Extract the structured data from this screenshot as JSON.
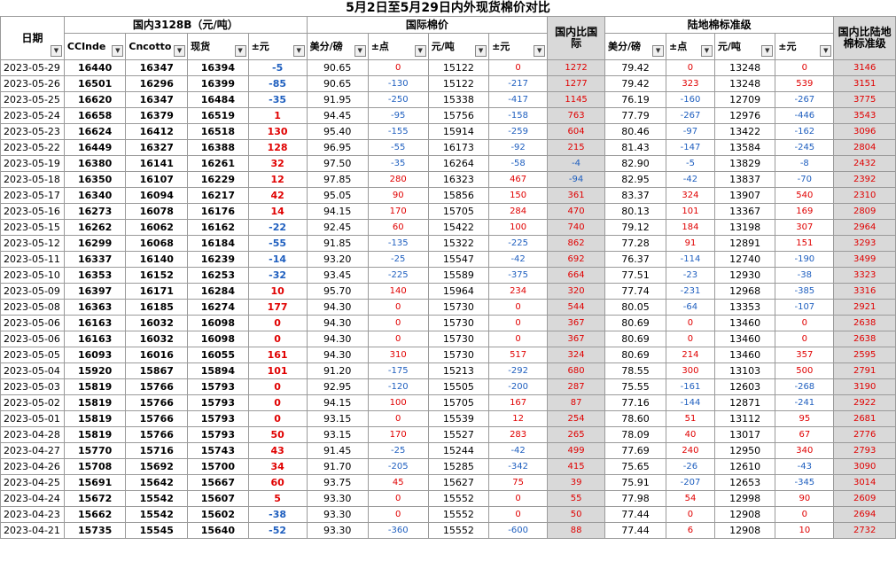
{
  "title": "5月2日至5月29日内外现货棉价对比",
  "groups": {
    "domestic": "国内3128B（元/吨）",
    "intl": "国际棉价",
    "compare_intl": "国内比国际",
    "landed": "陆地棉标准级",
    "compare_landed": "国内比陆地棉标准级"
  },
  "headers": {
    "date": "日期",
    "cci": "CCInde",
    "cnc": "Cncotto",
    "spot": "现货",
    "pm1": "±元",
    "usc1": "美分/磅",
    "pts1": "±点",
    "yuan1": "元/吨",
    "pm2": "±元",
    "usc2": "美分/磅",
    "pts2": "±点",
    "yuan2": "元/吨",
    "pm3": "±元"
  },
  "colors": {
    "positive": "#e00000",
    "negative": "#1f5fbf",
    "compare_bg": "#d9d9d9"
  },
  "rows": [
    [
      "2023-05-29",
      "16440",
      "16347",
      "16394",
      "-5",
      "90.65",
      "0",
      "15122",
      "0",
      "1272",
      "79.42",
      "0",
      "13248",
      "0",
      "3146"
    ],
    [
      "2023-05-26",
      "16501",
      "16296",
      "16399",
      "-85",
      "90.65",
      "-130",
      "15122",
      "-217",
      "1277",
      "79.42",
      "323",
      "13248",
      "539",
      "3151"
    ],
    [
      "2023-05-25",
      "16620",
      "16347",
      "16484",
      "-35",
      "91.95",
      "-250",
      "15338",
      "-417",
      "1145",
      "76.19",
      "-160",
      "12709",
      "-267",
      "3775"
    ],
    [
      "2023-05-24",
      "16658",
      "16379",
      "16519",
      "1",
      "94.45",
      "-95",
      "15756",
      "-158",
      "763",
      "77.79",
      "-267",
      "12976",
      "-446",
      "3543"
    ],
    [
      "2023-05-23",
      "16624",
      "16412",
      "16518",
      "130",
      "95.40",
      "-155",
      "15914",
      "-259",
      "604",
      "80.46",
      "-97",
      "13422",
      "-162",
      "3096"
    ],
    [
      "2023-05-22",
      "16449",
      "16327",
      "16388",
      "128",
      "96.95",
      "-55",
      "16173",
      "-92",
      "215",
      "81.43",
      "-147",
      "13584",
      "-245",
      "2804"
    ],
    [
      "2023-05-19",
      "16380",
      "16141",
      "16261",
      "32",
      "97.50",
      "-35",
      "16264",
      "-58",
      "-4",
      "82.90",
      "-5",
      "13829",
      "-8",
      "2432"
    ],
    [
      "2023-05-18",
      "16350",
      "16107",
      "16229",
      "12",
      "97.85",
      "280",
      "16323",
      "467",
      "-94",
      "82.95",
      "-42",
      "13837",
      "-70",
      "2392"
    ],
    [
      "2023-05-17",
      "16340",
      "16094",
      "16217",
      "42",
      "95.05",
      "90",
      "15856",
      "150",
      "361",
      "83.37",
      "324",
      "13907",
      "540",
      "2310"
    ],
    [
      "2023-05-16",
      "16273",
      "16078",
      "16176",
      "14",
      "94.15",
      "170",
      "15705",
      "284",
      "470",
      "80.13",
      "101",
      "13367",
      "169",
      "2809"
    ],
    [
      "2023-05-15",
      "16262",
      "16062",
      "16162",
      "-22",
      "92.45",
      "60",
      "15422",
      "100",
      "740",
      "79.12",
      "184",
      "13198",
      "307",
      "2964"
    ],
    [
      "2023-05-12",
      "16299",
      "16068",
      "16184",
      "-55",
      "91.85",
      "-135",
      "15322",
      "-225",
      "862",
      "77.28",
      "91",
      "12891",
      "151",
      "3293"
    ],
    [
      "2023-05-11",
      "16337",
      "16140",
      "16239",
      "-14",
      "93.20",
      "-25",
      "15547",
      "-42",
      "692",
      "76.37",
      "-114",
      "12740",
      "-190",
      "3499"
    ],
    [
      "2023-05-10",
      "16353",
      "16152",
      "16253",
      "-32",
      "93.45",
      "-225",
      "15589",
      "-375",
      "664",
      "77.51",
      "-23",
      "12930",
      "-38",
      "3323"
    ],
    [
      "2023-05-09",
      "16397",
      "16171",
      "16284",
      "10",
      "95.70",
      "140",
      "15964",
      "234",
      "320",
      "77.74",
      "-231",
      "12968",
      "-385",
      "3316"
    ],
    [
      "2023-05-08",
      "16363",
      "16185",
      "16274",
      "177",
      "94.30",
      "0",
      "15730",
      "0",
      "544",
      "80.05",
      "-64",
      "13353",
      "-107",
      "2921"
    ],
    [
      "2023-05-06",
      "16163",
      "16032",
      "16098",
      "0",
      "94.30",
      "0",
      "15730",
      "0",
      "367",
      "80.69",
      "0",
      "13460",
      "0",
      "2638"
    ],
    [
      "2023-05-06",
      "16163",
      "16032",
      "16098",
      "0",
      "94.30",
      "0",
      "15730",
      "0",
      "367",
      "80.69",
      "0",
      "13460",
      "0",
      "2638"
    ],
    [
      "2023-05-05",
      "16093",
      "16016",
      "16055",
      "161",
      "94.30",
      "310",
      "15730",
      "517",
      "324",
      "80.69",
      "214",
      "13460",
      "357",
      "2595"
    ],
    [
      "2023-05-04",
      "15920",
      "15867",
      "15894",
      "101",
      "91.20",
      "-175",
      "15213",
      "-292",
      "680",
      "78.55",
      "300",
      "13103",
      "500",
      "2791"
    ],
    [
      "2023-05-03",
      "15819",
      "15766",
      "15793",
      "0",
      "92.95",
      "-120",
      "15505",
      "-200",
      "287",
      "75.55",
      "-161",
      "12603",
      "-268",
      "3190"
    ],
    [
      "2023-05-02",
      "15819",
      "15766",
      "15793",
      "0",
      "94.15",
      "100",
      "15705",
      "167",
      "87",
      "77.16",
      "-144",
      "12871",
      "-241",
      "2922"
    ],
    [
      "2023-05-01",
      "15819",
      "15766",
      "15793",
      "0",
      "93.15",
      "0",
      "15539",
      "12",
      "254",
      "78.60",
      "51",
      "13112",
      "95",
      "2681"
    ],
    [
      "2023-04-28",
      "15819",
      "15766",
      "15793",
      "50",
      "93.15",
      "170",
      "15527",
      "283",
      "265",
      "78.09",
      "40",
      "13017",
      "67",
      "2776"
    ],
    [
      "2023-04-27",
      "15770",
      "15716",
      "15743",
      "43",
      "91.45",
      "-25",
      "15244",
      "-42",
      "499",
      "77.69",
      "240",
      "12950",
      "340",
      "2793"
    ],
    [
      "2023-04-26",
      "15708",
      "15692",
      "15700",
      "34",
      "91.70",
      "-205",
      "15285",
      "-342",
      "415",
      "75.65",
      "-26",
      "12610",
      "-43",
      "3090"
    ],
    [
      "2023-04-25",
      "15691",
      "15642",
      "15667",
      "60",
      "93.75",
      "45",
      "15627",
      "75",
      "39",
      "75.91",
      "-207",
      "12653",
      "-345",
      "3014"
    ],
    [
      "2023-04-24",
      "15672",
      "15542",
      "15607",
      "5",
      "93.30",
      "0",
      "15552",
      "0",
      "55",
      "77.98",
      "54",
      "12998",
      "90",
      "2609"
    ],
    [
      "2023-04-23",
      "15662",
      "15542",
      "15602",
      "-38",
      "93.30",
      "0",
      "15552",
      "0",
      "50",
      "77.44",
      "0",
      "12908",
      "0",
      "2694"
    ],
    [
      "2023-04-21",
      "15735",
      "15545",
      "15640",
      "-52",
      "93.30",
      "-360",
      "15552",
      "-600",
      "88",
      "77.44",
      "6",
      "12908",
      "10",
      "2732"
    ]
  ]
}
